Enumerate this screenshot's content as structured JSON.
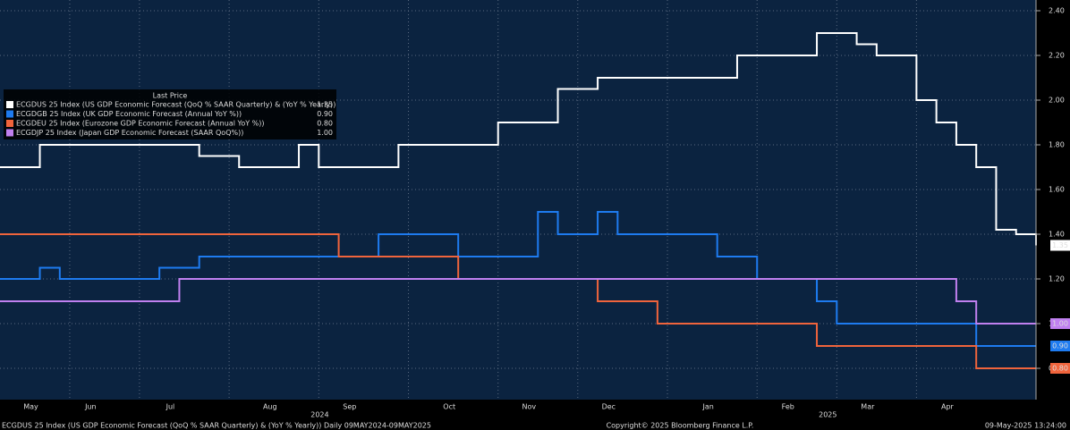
{
  "chart_data": {
    "type": "line",
    "step": "post",
    "legend_title": "Last Price",
    "legend_corner": "upper-left",
    "grid": true,
    "categories": [
      null,
      null,
      "May",
      null,
      null,
      "Jun",
      null,
      null,
      null,
      "Jul",
      null,
      null,
      null,
      null,
      "Aug",
      null,
      null,
      null,
      "Sep",
      null,
      null,
      null,
      null,
      "Oct",
      null,
      null,
      null,
      "Nov",
      null,
      null,
      null,
      "Dec",
      null,
      null,
      null,
      null,
      "Jan",
      null,
      null,
      null,
      "Feb",
      null,
      null,
      null,
      "Mar",
      null,
      null,
      null,
      "Apr",
      null,
      null,
      null,
      null
    ],
    "x_groups": [
      {
        "label": "2024",
        "first": "May",
        "last": "Dec"
      },
      {
        "label": "2025",
        "first": "Jan",
        "last": "Apr"
      }
    ],
    "series": [
      {
        "name": "ECGDUS 25 Index (US GDP Economic Forecast (QoQ % SAAR Quarterly) & (YoY % Yearly))",
        "color": "#ffffff",
        "last_label": "1.35",
        "values": [
          1.7,
          1.7,
          1.8,
          1.8,
          1.8,
          1.8,
          1.8,
          1.8,
          1.8,
          1.8,
          1.75,
          1.75,
          1.7,
          1.7,
          1.7,
          1.8,
          1.7,
          1.7,
          1.7,
          1.7,
          1.8,
          1.8,
          1.8,
          1.8,
          1.8,
          1.9,
          1.9,
          1.9,
          2.05,
          2.05,
          2.1,
          2.1,
          2.1,
          2.1,
          2.1,
          2.1,
          2.1,
          2.2,
          2.2,
          2.2,
          2.2,
          2.3,
          2.3,
          2.25,
          2.2,
          2.2,
          2.0,
          1.9,
          1.8,
          1.7,
          1.42,
          1.4,
          1.35
        ]
      },
      {
        "name": "ECGDGB 25 Index (UK GDP Economic Forecast (Annual YoY %))",
        "color": "#1e7bf0",
        "last_label": "0.90",
        "values": [
          1.2,
          1.2,
          1.25,
          1.2,
          1.2,
          1.2,
          1.2,
          1.2,
          1.25,
          1.25,
          1.3,
          1.3,
          1.3,
          1.3,
          1.3,
          1.3,
          1.3,
          1.3,
          1.3,
          1.4,
          1.4,
          1.4,
          1.4,
          1.3,
          1.3,
          1.3,
          1.3,
          1.5,
          1.4,
          1.4,
          1.5,
          1.4,
          1.4,
          1.4,
          1.4,
          1.4,
          1.3,
          1.3,
          1.2,
          1.2,
          1.2,
          1.1,
          1.0,
          1.0,
          1.0,
          1.0,
          1.0,
          1.0,
          1.0,
          0.9,
          0.9,
          0.9,
          0.9
        ]
      },
      {
        "name": "ECGDEU 25 Index (Eurozone GDP Economic Forecast (Annual YoY %))",
        "color": "#f0643c",
        "last_label": "0.80",
        "values": [
          1.4,
          1.4,
          1.4,
          1.4,
          1.4,
          1.4,
          1.4,
          1.4,
          1.4,
          1.4,
          1.4,
          1.4,
          1.4,
          1.4,
          1.4,
          1.4,
          1.4,
          1.3,
          1.3,
          1.3,
          1.3,
          1.3,
          1.3,
          1.2,
          1.2,
          1.2,
          1.2,
          1.2,
          1.2,
          1.2,
          1.1,
          1.1,
          1.1,
          1.0,
          1.0,
          1.0,
          1.0,
          1.0,
          1.0,
          1.0,
          1.0,
          0.9,
          0.9,
          0.9,
          0.9,
          0.9,
          0.9,
          0.9,
          0.9,
          0.8,
          0.8,
          0.8,
          0.8
        ]
      },
      {
        "name": "ECGDJP 25 Index (Japan GDP Economic Forecast (SAAR QoQ%))",
        "color": "#c080f0",
        "last_label": "1.00",
        "values": [
          1.1,
          1.1,
          1.1,
          1.1,
          1.1,
          1.1,
          1.1,
          1.1,
          1.1,
          1.2,
          1.2,
          1.2,
          1.2,
          1.2,
          1.2,
          1.2,
          1.2,
          1.2,
          1.2,
          1.2,
          1.2,
          1.2,
          1.2,
          1.2,
          1.2,
          1.2,
          1.2,
          1.2,
          1.2,
          1.2,
          1.2,
          1.2,
          1.2,
          1.2,
          1.2,
          1.2,
          1.2,
          1.2,
          1.2,
          1.2,
          1.2,
          1.2,
          1.2,
          1.2,
          1.2,
          1.2,
          1.2,
          1.2,
          1.1,
          1.0,
          1.0,
          1.0,
          1.0
        ]
      }
    ],
    "ylim": [
      0.66,
      2.448
    ],
    "yticks": [
      {
        "value": 0.8,
        "label": "0.80"
      },
      {
        "value": 1.0,
        "label": "1.00"
      },
      {
        "value": 1.2,
        "label": "1.20"
      },
      {
        "value": 1.4,
        "label": "1.40"
      },
      {
        "value": 1.6,
        "label": "1.60"
      },
      {
        "value": 1.8,
        "label": "1.80"
      },
      {
        "value": 2.0,
        "label": "2.00"
      },
      {
        "value": 2.2,
        "label": "2.20"
      },
      {
        "value": 2.4,
        "label": "2.40"
      }
    ],
    "footer": {
      "left": "ECGDUS 25 Index (US GDP Economic Forecast (QoQ % SAAR Quarterly) & (YoY % Yearly))  Daily 09MAY2024-09MAY2025",
      "center": "Copyright© 2025 Bloomberg Finance L.P.",
      "right": "09-May-2025 13:24:00"
    }
  }
}
